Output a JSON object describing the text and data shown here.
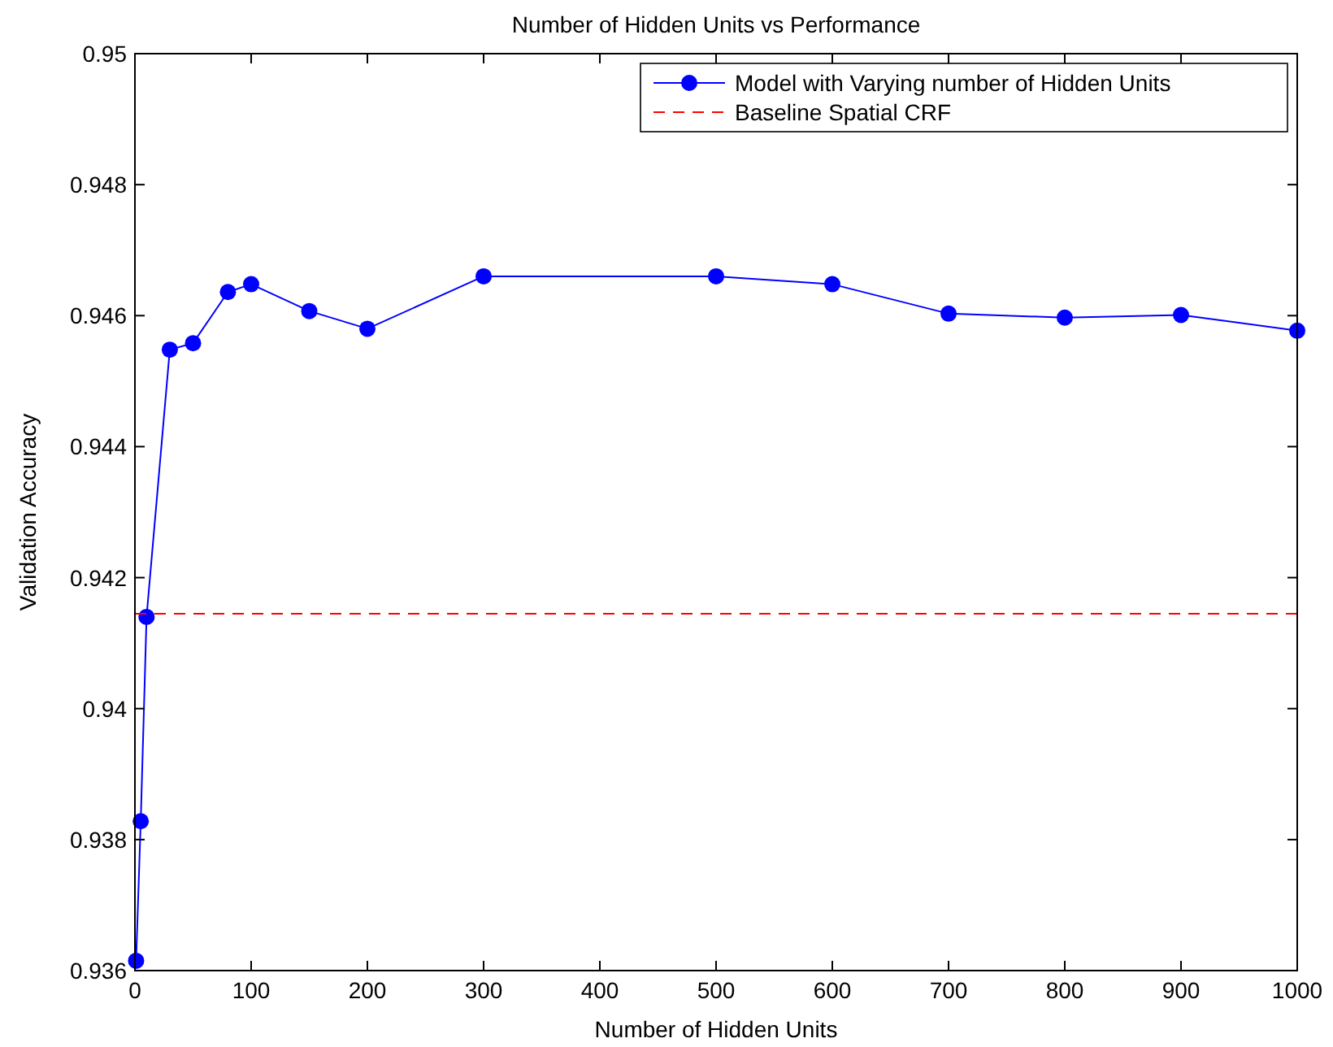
{
  "chart_data": {
    "type": "line",
    "title": "Number of Hidden Units vs Performance",
    "xlabel": "Number of Hidden Units",
    "ylabel": "Validation Accuracy",
    "x": [
      1,
      5,
      10,
      30,
      50,
      80,
      100,
      150,
      200,
      300,
      500,
      600,
      700,
      800,
      900,
      1000
    ],
    "series": [
      {
        "name": "Model with Varying number of Hidden Units",
        "color": "#0000ff",
        "marker": "circle",
        "line_style": "solid",
        "values": [
          0.93615,
          0.93828,
          0.9414,
          0.94548,
          0.94558,
          0.94636,
          0.94648,
          0.94607,
          0.9458,
          0.9466,
          0.9466,
          0.94648,
          0.94603,
          0.94597,
          0.94601,
          0.94577
        ]
      },
      {
        "name": "Baseline Spatial CRF",
        "color": "#ff0000",
        "marker": "none",
        "line_style": "dashed",
        "x": [
          0,
          1000
        ],
        "values": [
          0.94145,
          0.94145
        ]
      }
    ],
    "xlim": [
      0,
      1000
    ],
    "ylim": [
      0.936,
      0.95
    ],
    "xticks": [
      0,
      100,
      200,
      300,
      400,
      500,
      600,
      700,
      800,
      900,
      1000
    ],
    "yticks": [
      0.936,
      0.938,
      0.94,
      0.942,
      0.944,
      0.946,
      0.948,
      0.95
    ],
    "grid": false,
    "legend": "top right"
  }
}
